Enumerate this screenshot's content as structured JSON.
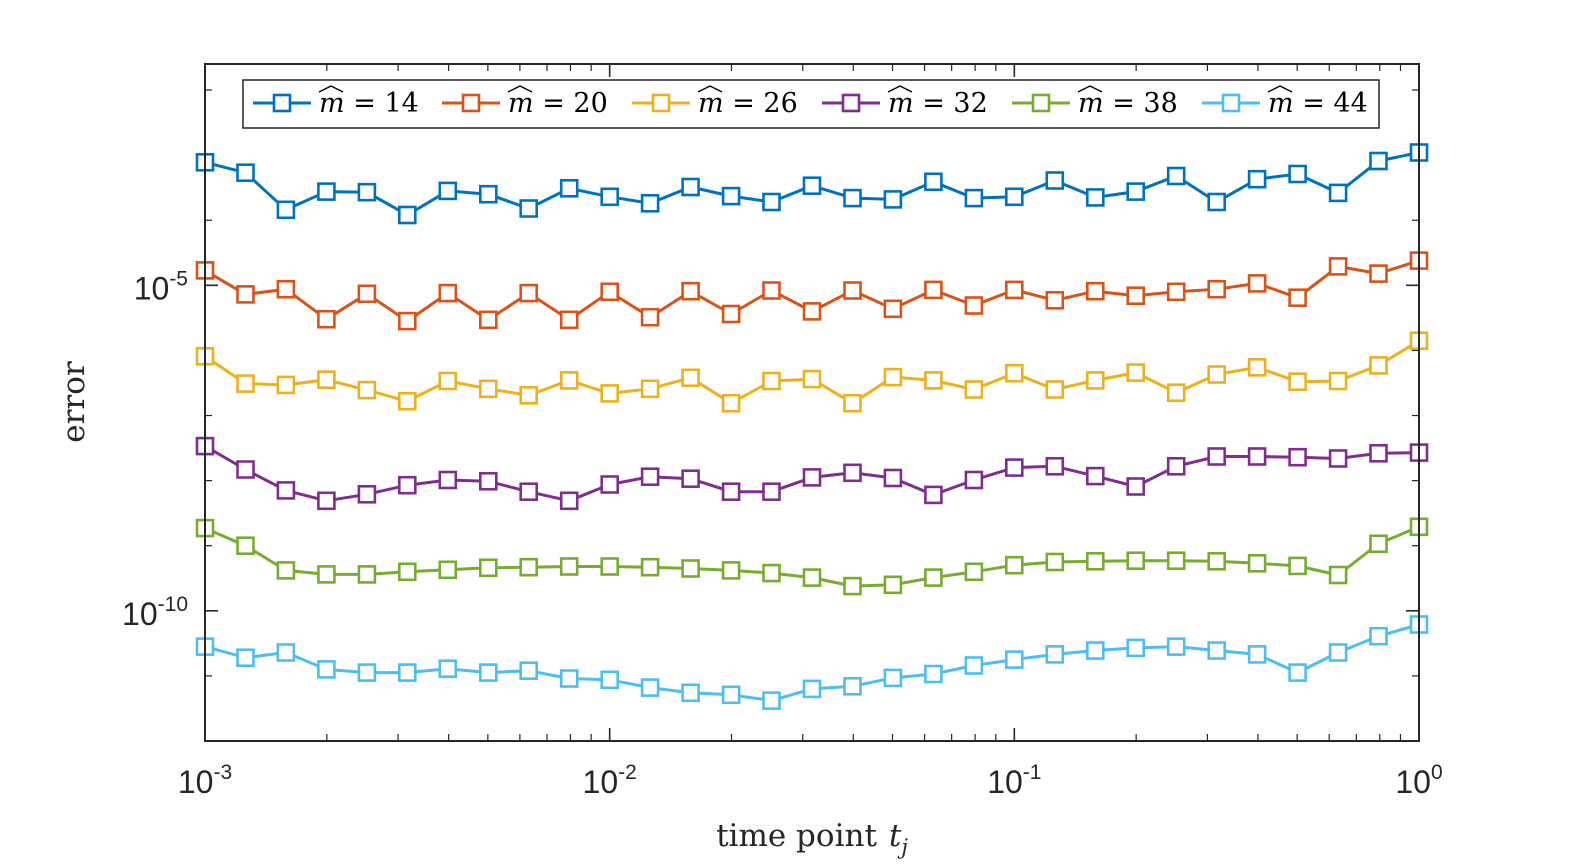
{
  "chart_data": {
    "type": "line",
    "title": "",
    "xlabel": "time point",
    "xlabel_var": "t",
    "xlabel_sub": "j",
    "ylabel": "error",
    "xscale": "log",
    "yscale": "log",
    "xlim": [
      0.001,
      1
    ],
    "ylim_exp": [
      -12,
      -1.6
    ],
    "xticks": [
      {
        "base": "10",
        "exp": "-3"
      },
      {
        "base": "10",
        "exp": "-2"
      },
      {
        "base": "10",
        "exp": "-1"
      },
      {
        "base": "10",
        "exp": "0"
      }
    ],
    "yticks": [
      {
        "base": "10",
        "exp": "-5"
      },
      {
        "base": "10",
        "exp": "-10"
      }
    ],
    "legend_position": "top",
    "marker": "square",
    "x_exponents": [
      -3,
      -2.9,
      -2.8,
      -2.7,
      -2.6,
      -2.5,
      -2.4,
      -2.3,
      -2.2,
      -2.1,
      -2,
      -1.9,
      -1.8,
      -1.7,
      -1.6,
      -1.5,
      -1.4,
      -1.3,
      -1.2,
      -1.1,
      -1,
      -0.9,
      -0.8,
      -0.7,
      -0.6,
      -0.5,
      -0.4,
      -0.3,
      -0.2,
      -0.1,
      0
    ],
    "series": [
      {
        "name": "m̂ = 14",
        "legend_prefix": "m",
        "legend_suffix": " = 14",
        "color": "#0072BD",
        "values_log10": [
          -3.11,
          -3.27,
          -3.84,
          -3.56,
          -3.57,
          -3.92,
          -3.55,
          -3.6,
          -3.82,
          -3.51,
          -3.64,
          -3.74,
          -3.49,
          -3.63,
          -3.72,
          -3.47,
          -3.66,
          -3.68,
          -3.41,
          -3.66,
          -3.64,
          -3.39,
          -3.65,
          -3.56,
          -3.32,
          -3.72,
          -3.37,
          -3.29,
          -3.58,
          -3.09,
          -2.96
        ]
      },
      {
        "name": "m̂ = 20",
        "legend_prefix": "m",
        "legend_suffix": " = 20",
        "color": "#D95319",
        "values_log10": [
          -4.77,
          -5.14,
          -5.06,
          -5.52,
          -5.13,
          -5.55,
          -5.12,
          -5.53,
          -5.12,
          -5.53,
          -5.1,
          -5.49,
          -5.09,
          -5.44,
          -5.08,
          -5.4,
          -5.08,
          -5.36,
          -5.07,
          -5.31,
          -5.07,
          -5.23,
          -5.09,
          -5.16,
          -5.1,
          -5.06,
          -4.97,
          -5.19,
          -4.71,
          -4.82,
          -4.62
        ]
      },
      {
        "name": "m̂ = 26",
        "legend_prefix": "m",
        "legend_suffix": " = 26",
        "color": "#EDB120",
        "values_log10": [
          -6.09,
          -6.51,
          -6.53,
          -6.45,
          -6.61,
          -6.78,
          -6.47,
          -6.59,
          -6.69,
          -6.46,
          -6.66,
          -6.59,
          -6.42,
          -6.81,
          -6.47,
          -6.44,
          -6.81,
          -6.41,
          -6.46,
          -6.6,
          -6.35,
          -6.6,
          -6.46,
          -6.34,
          -6.65,
          -6.37,
          -6.26,
          -6.48,
          -6.47,
          -6.23,
          -5.85
        ]
      },
      {
        "name": "m̂ = 32",
        "legend_prefix": "m",
        "legend_suffix": " = 32",
        "color": "#7E2F8E",
        "values_log10": [
          -7.47,
          -7.83,
          -8.15,
          -8.31,
          -8.21,
          -8.07,
          -7.99,
          -8.01,
          -8.17,
          -8.31,
          -8.06,
          -7.94,
          -7.97,
          -8.17,
          -8.17,
          -7.95,
          -7.88,
          -7.96,
          -8.22,
          -7.99,
          -7.8,
          -7.78,
          -7.93,
          -8.09,
          -7.78,
          -7.63,
          -7.63,
          -7.64,
          -7.66,
          -7.58,
          -7.57
        ]
      },
      {
        "name": "m̂ = 38",
        "legend_prefix": "m",
        "legend_suffix": " = 38",
        "color": "#77AC30",
        "values_log10": [
          -8.73,
          -9.0,
          -9.38,
          -9.44,
          -9.44,
          -9.4,
          -9.37,
          -9.34,
          -9.33,
          -9.32,
          -9.32,
          -9.33,
          -9.35,
          -9.38,
          -9.42,
          -9.49,
          -9.62,
          -9.6,
          -9.49,
          -9.4,
          -9.3,
          -9.25,
          -9.24,
          -9.23,
          -9.23,
          -9.24,
          -9.27,
          -9.31,
          -9.45,
          -8.97,
          -8.71
        ]
      },
      {
        "name": "m̂ = 44",
        "legend_prefix": "m",
        "legend_suffix": " = 44",
        "color": "#4DBEEE",
        "values_log10": [
          -10.55,
          -10.72,
          -10.64,
          -10.9,
          -10.95,
          -10.95,
          -10.89,
          -10.95,
          -10.92,
          -11.04,
          -11.06,
          -11.18,
          -11.26,
          -11.29,
          -11.38,
          -11.2,
          -11.16,
          -11.03,
          -10.97,
          -10.84,
          -10.75,
          -10.67,
          -10.61,
          -10.57,
          -10.55,
          -10.61,
          -10.67,
          -10.95,
          -10.64,
          -10.39,
          -10.21
        ]
      }
    ]
  }
}
